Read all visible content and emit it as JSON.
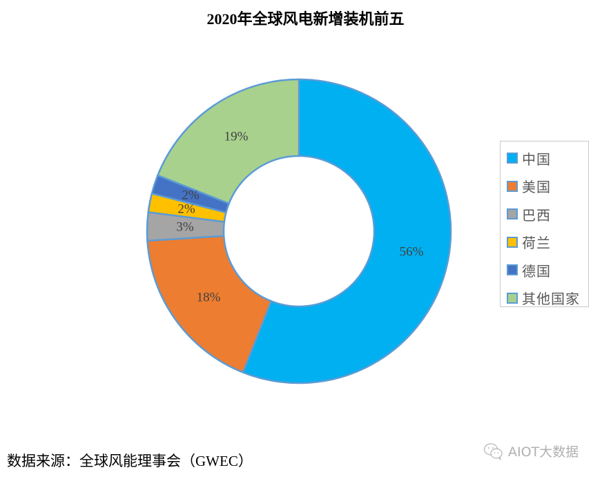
{
  "title": "2020年全球风电新增装机前五",
  "source": "数据来源：全球风能理事会（GWEC）",
  "watermark": {
    "icon": "wechat-icon",
    "text": "AIOT大数据"
  },
  "colors": {
    "slice_border": "#5b9bd5",
    "label_text": "#404040",
    "legend_border": "#c8c8c8"
  },
  "chart_data": {
    "type": "pie",
    "variant": "donut",
    "title": "2020年全球风电新增装机前五",
    "categories": [
      "中国",
      "美国",
      "巴西",
      "荷兰",
      "德国",
      "其他国家"
    ],
    "values": [
      56,
      18,
      3,
      2,
      2,
      19
    ],
    "labels": [
      "56%",
      "18%",
      "3%",
      "2%",
      "2%",
      "19%"
    ],
    "colors": [
      "#00b0f0",
      "#ed7d31",
      "#a5a5a5",
      "#ffc000",
      "#4472c4",
      "#a9d18e"
    ],
    "unit": "%",
    "start_angle": "top (12 o'clock), clockwise",
    "legend_position": "right",
    "source": "全球风能理事会（GWEC）"
  },
  "legend": {
    "items": [
      {
        "label": "中国",
        "color": "#00b0f0"
      },
      {
        "label": "美国",
        "color": "#ed7d31"
      },
      {
        "label": "巴西",
        "color": "#a5a5a5"
      },
      {
        "label": "荷兰",
        "color": "#ffc000"
      },
      {
        "label": "德国",
        "color": "#4472c4"
      },
      {
        "label": "其他国家",
        "color": "#a9d18e"
      }
    ]
  }
}
